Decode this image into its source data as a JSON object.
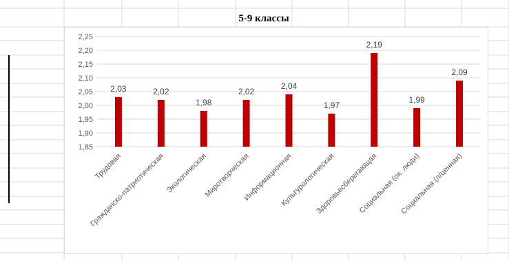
{
  "sheet": {
    "header_title": "5-9 классы"
  },
  "chart_data": {
    "type": "bar",
    "categories": [
      "Трудовая",
      "Гражданско-патриотическая",
      "Экологическая",
      "Миротворческая",
      "Информационная",
      "Культурологическая",
      "Здоровьесберегающая",
      "Социальная (ок. люди)",
      "Социальная (л/ценная)"
    ],
    "values": [
      2.03,
      2.02,
      1.98,
      2.02,
      2.04,
      1.97,
      2.19,
      1.99,
      2.09
    ],
    "data_labels": [
      "2,03",
      "2,02",
      "1,98",
      "2,02",
      "2,04",
      "1,97",
      "2,19",
      "1,99",
      "2,09"
    ],
    "ylim": [
      1.85,
      2.25
    ],
    "yticks": [
      1.85,
      1.9,
      1.95,
      2.0,
      2.05,
      2.1,
      2.15,
      2.2,
      2.25
    ],
    "ytick_labels": [
      "1,85",
      "1,90",
      "1,95",
      "2,00",
      "2,05",
      "2,10",
      "2,15",
      "2,20",
      "2,25"
    ],
    "title": "",
    "xlabel": "",
    "ylabel": "",
    "grid": true,
    "bar_color": "#c00000"
  }
}
